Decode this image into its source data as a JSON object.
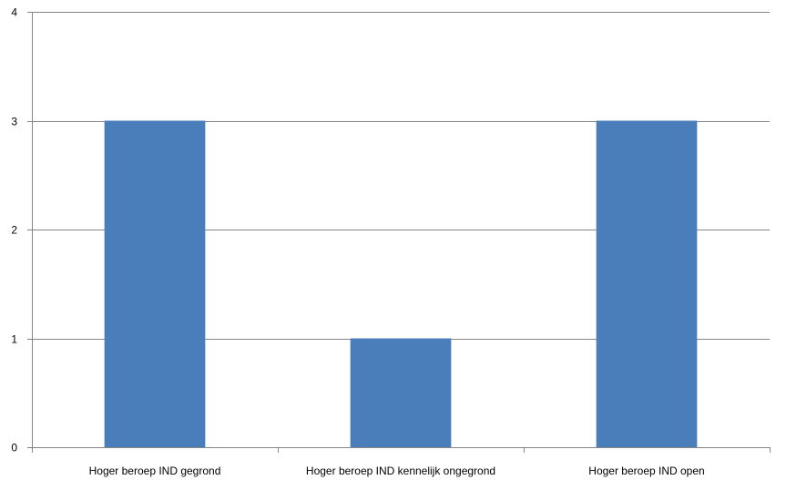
{
  "chart_data": {
    "type": "bar",
    "categories": [
      "Hoger beroep IND gegrond",
      "Hoger beroep IND kennelijk ongegrond",
      "Hoger beroep IND open"
    ],
    "values": [
      3,
      1,
      3
    ],
    "title": "",
    "xlabel": "",
    "ylabel": "",
    "ylim": [
      0,
      4
    ],
    "yticks": [
      0,
      1,
      2,
      3,
      4
    ],
    "grid": true,
    "legend": "none",
    "bar_color": "#4a7ebb",
    "grid_color": "#868686"
  }
}
